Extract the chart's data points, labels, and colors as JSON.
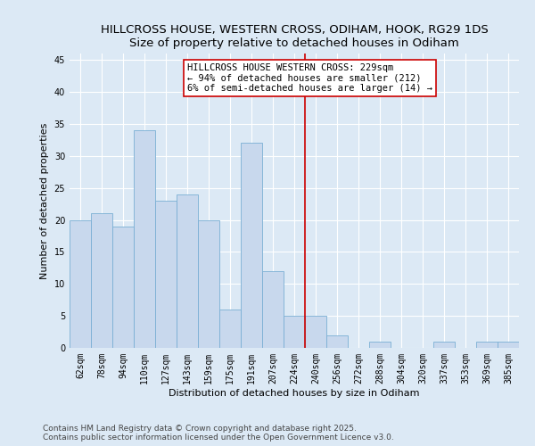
{
  "title": "HILLCROSS HOUSE, WESTERN CROSS, ODIHAM, HOOK, RG29 1DS",
  "subtitle": "Size of property relative to detached houses in Odiham",
  "xlabel": "Distribution of detached houses by size in Odiham",
  "ylabel": "Number of detached properties",
  "categories": [
    "62sqm",
    "78sqm",
    "94sqm",
    "110sqm",
    "127sqm",
    "143sqm",
    "159sqm",
    "175sqm",
    "191sqm",
    "207sqm",
    "224sqm",
    "240sqm",
    "256sqm",
    "272sqm",
    "288sqm",
    "304sqm",
    "320sqm",
    "337sqm",
    "353sqm",
    "369sqm",
    "385sqm"
  ],
  "values": [
    20,
    21,
    19,
    34,
    23,
    24,
    20,
    6,
    32,
    12,
    5,
    5,
    2,
    0,
    1,
    0,
    0,
    1,
    0,
    1,
    1
  ],
  "bar_color": "#c8d8ed",
  "bar_edge_color": "#7aafd4",
  "bar_width": 1.0,
  "ylim": [
    0,
    46
  ],
  "yticks": [
    0,
    5,
    10,
    15,
    20,
    25,
    30,
    35,
    40,
    45
  ],
  "vline_index": 10,
  "vline_color": "#cc0000",
  "annotation_text": "HILLCROSS HOUSE WESTERN CROSS: 229sqm\n← 94% of detached houses are smaller (212)\n6% of semi-detached houses are larger (14) →",
  "annotation_box_color": "#ffffff",
  "annotation_border_color": "#cc0000",
  "bg_color": "#dce9f5",
  "plot_bg_color": "#dce9f5",
  "grid_color": "#ffffff",
  "footer": "Contains HM Land Registry data © Crown copyright and database right 2025.\nContains public sector information licensed under the Open Government Licence v3.0.",
  "title_fontsize": 9.5,
  "subtitle_fontsize": 8.5,
  "xlabel_fontsize": 8,
  "ylabel_fontsize": 8,
  "tick_fontsize": 7,
  "annotation_fontsize": 7.5,
  "footer_fontsize": 6.5
}
